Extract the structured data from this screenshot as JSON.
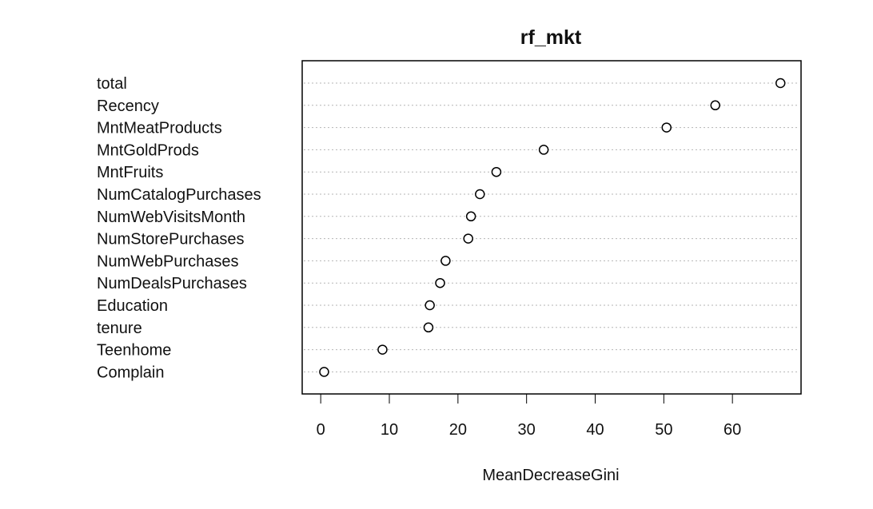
{
  "chart_data": {
    "type": "scatter",
    "title": "rf_mkt",
    "xlabel": "MeanDecreaseGini",
    "ylabel": "",
    "xlim": [
      -2.7,
      70.0
    ],
    "xticks": [
      0,
      10,
      20,
      30,
      40,
      50,
      60
    ],
    "grid": "horizontal dotted lines",
    "categories": [
      "total",
      "Recency",
      "MntMeatProducts",
      "MntGoldProds",
      "MntFruits",
      "NumCatalogPurchases",
      "NumWebVisitsMonth",
      "NumStorePurchases",
      "NumWebPurchases",
      "NumDealsPurchases",
      "Education",
      "tenure",
      "Teenhome",
      "Complain"
    ],
    "values": [
      67.0,
      57.5,
      50.4,
      32.5,
      25.6,
      23.2,
      21.9,
      21.5,
      18.2,
      17.4,
      15.9,
      15.7,
      9.0,
      0.5
    ]
  }
}
